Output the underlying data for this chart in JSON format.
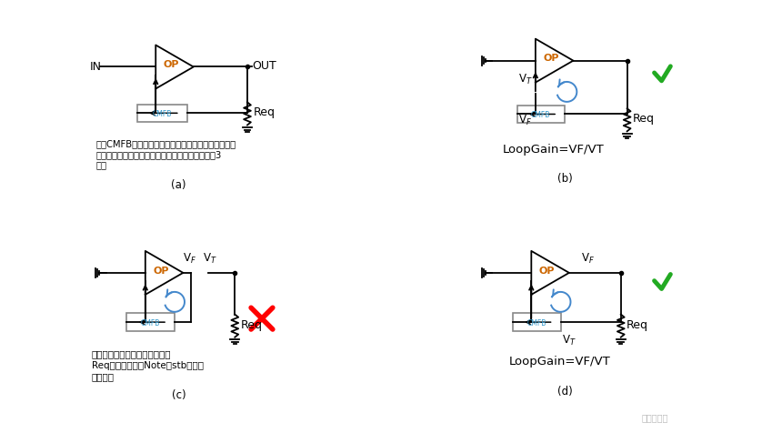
{
  "bg_color": "#ffffff",
  "panel_a": {
    "caption": "(a)",
    "text_line1": "进行CMFB环路的小信号分析，需要进行断环处理。断",
    "text_line2": "环位置需处在负反馈环路当中，上图可断环位置有3",
    "text_line3": "处。"
  },
  "panel_b": {
    "caption": "(b)",
    "text": "LoopGain=VF/VT"
  },
  "panel_c": {
    "caption": "(c)",
    "text_line1": "错误，这样在手动分析时没有将",
    "text_line2": "Req将计入环路（Note：stb仿真时",
    "text_line3": "不影响）"
  },
  "panel_d": {
    "caption": "(d)",
    "text": "LoopGain=VF/VT",
    "watermark": "模拟小笨蛋"
  }
}
